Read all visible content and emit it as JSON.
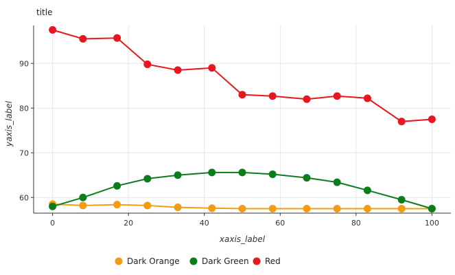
{
  "chart_data": {
    "type": "line",
    "title": "title",
    "xlabel": "xaxis_label",
    "ylabel": "yaxis_label",
    "xlim": [
      -5,
      105
    ],
    "ylim": [
      56.5,
      98.5
    ],
    "xticks": [
      0,
      20,
      40,
      60,
      80,
      100
    ],
    "yticks": [
      60,
      70,
      80,
      90
    ],
    "grid": true,
    "legend_position": "bottom",
    "x": [
      0,
      8,
      17,
      25,
      33,
      42,
      50,
      58,
      67,
      75,
      83,
      92,
      100
    ],
    "series": [
      {
        "name": "Dark Orange",
        "color": "#f39c12",
        "values": [
          58.5,
          58.2,
          58.4,
          58.2,
          57.8,
          57.6,
          57.5,
          57.5,
          57.5,
          57.5,
          57.5,
          57.5,
          57.5
        ]
      },
      {
        "name": "Dark Green",
        "color": "#0b7d1d",
        "values": [
          58.0,
          60.0,
          62.6,
          64.2,
          65.0,
          65.6,
          65.6,
          65.2,
          64.4,
          63.4,
          61.6,
          59.5,
          57.5
        ]
      },
      {
        "name": "Red",
        "color": "#e8161e",
        "values": [
          97.5,
          95.5,
          95.7,
          89.8,
          88.5,
          89.0,
          83.0,
          82.7,
          82.0,
          82.7,
          82.2,
          77.0,
          77.5
        ]
      }
    ]
  }
}
